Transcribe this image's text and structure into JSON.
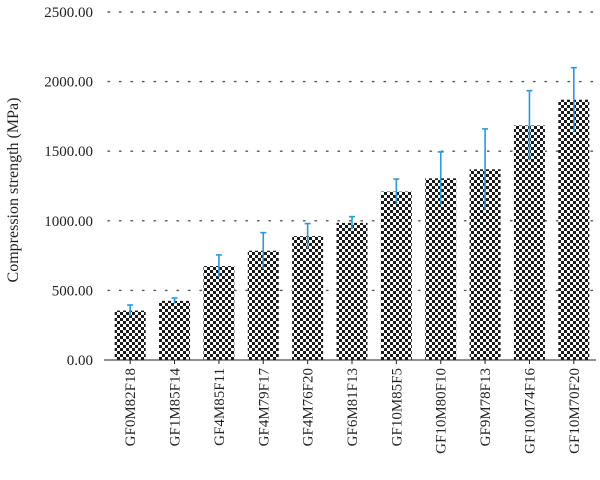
{
  "chart_data": {
    "type": "bar",
    "title": "",
    "xlabel": "",
    "ylabel": "Compression strength (MPa)",
    "ylim": [
      0,
      2500
    ],
    "yticks": [
      "0.00",
      "500.00",
      "1000.00",
      "1500.00",
      "2000.00",
      "2500.00"
    ],
    "grid": "horizontal dotted",
    "categories": [
      "GF0M82F18",
      "GF1M85F14",
      "GF4M85F11",
      "GF4M79F17",
      "GF4M76F20",
      "GF6M81F13",
      "GF10M85F5",
      "GF10M80F10",
      "GF9M78F13",
      "GF10M74F16",
      "GF10M70F20"
    ],
    "values": [
      355,
      425,
      675,
      785,
      890,
      985,
      1210,
      1305,
      1370,
      1685,
      1870
    ],
    "error": [
      40,
      20,
      80,
      130,
      90,
      45,
      90,
      190,
      290,
      250,
      230
    ],
    "bar_fill": "#1a1a1a",
    "error_color": "#2e97d6"
  }
}
